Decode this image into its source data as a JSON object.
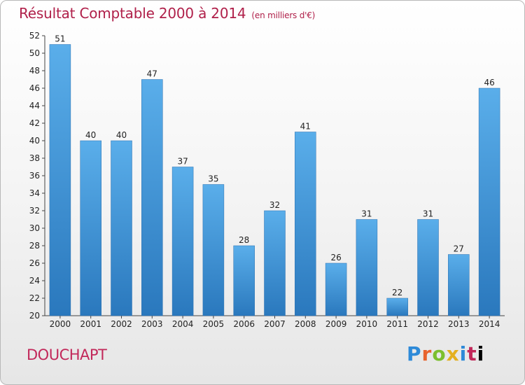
{
  "title": "Résultat Comptable 2000 à 2014",
  "subtitle": "(en milliers d'€)",
  "commune": "DOUCHAPT",
  "logo_text": "Proxiti",
  "chart_data": {
    "type": "bar",
    "categories": [
      "2000",
      "2001",
      "2002",
      "2003",
      "2004",
      "2005",
      "2006",
      "2007",
      "2008",
      "2009",
      "2010",
      "2011",
      "2012",
      "2013",
      "2014"
    ],
    "values": [
      51,
      40,
      40,
      47,
      37,
      35,
      28,
      32,
      41,
      26,
      31,
      22,
      31,
      27,
      46
    ],
    "title": "Résultat Comptable 2000 à 2014",
    "ylim": [
      20,
      52
    ],
    "yticks": [
      20,
      22,
      24,
      26,
      28,
      30,
      32,
      34,
      36,
      38,
      40,
      42,
      44,
      46,
      48,
      50,
      52
    ],
    "grid": false,
    "bar_color": "#3f95dc"
  }
}
